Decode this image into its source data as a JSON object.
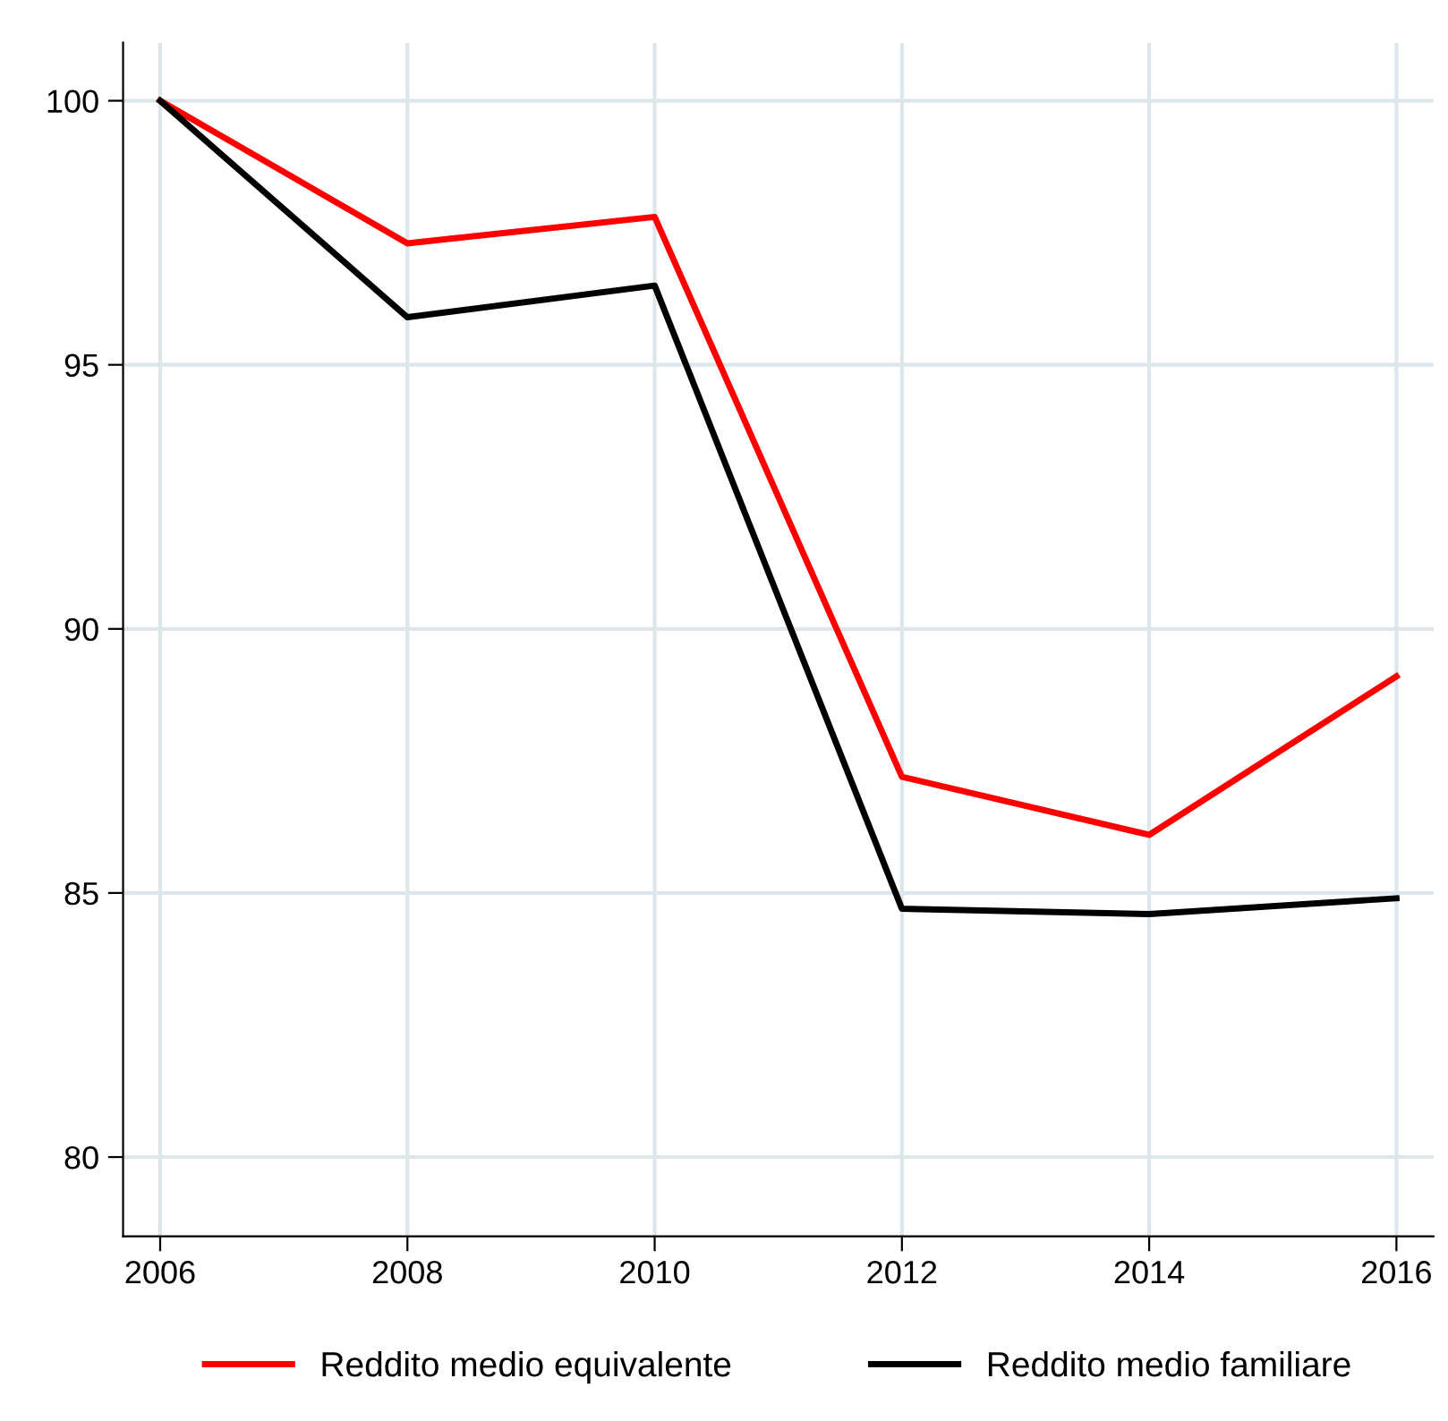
{
  "chart_data": {
    "type": "line",
    "x": [
      2006,
      2008,
      2010,
      2012,
      2014,
      2016
    ],
    "series": [
      {
        "name": "Reddito medio equivalente",
        "color": "#ff0000",
        "values": [
          100,
          97.3,
          97.8,
          87.2,
          86.1,
          89.1
        ]
      },
      {
        "name": "Reddito medio familiare",
        "color": "#000000",
        "values": [
          100,
          95.9,
          96.5,
          84.7,
          84.6,
          84.9
        ]
      }
    ],
    "xlim": [
      2005.7,
      2016.3
    ],
    "ylim": [
      78.5,
      101.1
    ],
    "xticks": [
      2006,
      2008,
      2010,
      2012,
      2014,
      2016
    ],
    "yticks": [
      80,
      85,
      90,
      95,
      100
    ],
    "grid": true,
    "legend": "bottom",
    "marker": "none",
    "line_style": "solid"
  }
}
